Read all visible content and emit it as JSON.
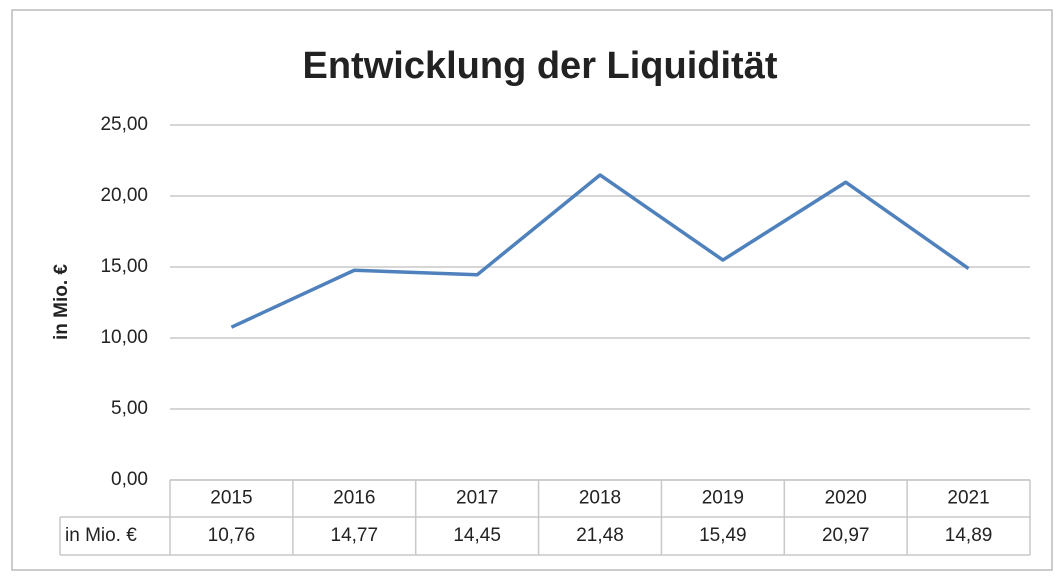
{
  "chart_data": {
    "type": "line",
    "title": "Entwicklung der Liquidität",
    "y_label": "in Mio. €",
    "categories": [
      "2015",
      "2016",
      "2017",
      "2018",
      "2019",
      "2020",
      "2021"
    ],
    "series": [
      {
        "name": "in Mio. €",
        "color": "#4f81bd",
        "values": [
          10.76,
          14.77,
          14.45,
          21.48,
          15.49,
          20.97,
          14.89
        ],
        "value_labels": [
          "10,76",
          "14,77",
          "14,45",
          "21,48",
          "15,49",
          "20,97",
          "14,89"
        ]
      }
    ],
    "ylim": [
      0,
      25
    ],
    "yticks": [
      {
        "value": 0,
        "label": "0,00"
      },
      {
        "value": 5,
        "label": "5,00"
      },
      {
        "value": 10,
        "label": "10,00"
      },
      {
        "value": 15,
        "label": "15,00"
      },
      {
        "value": 20,
        "label": "20,00"
      },
      {
        "value": 25,
        "label": "25,00"
      }
    ],
    "grid": true
  }
}
